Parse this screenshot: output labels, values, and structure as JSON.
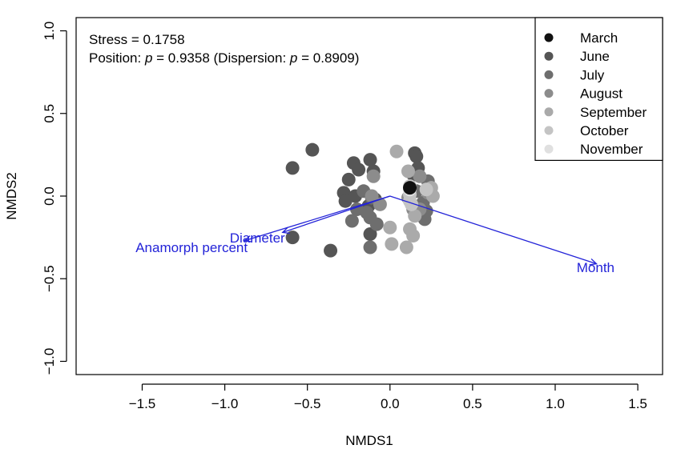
{
  "chart_data": {
    "type": "scatter",
    "xlabel": "NMDS1",
    "ylabel": "NMDS2",
    "xlim": [
      -1.9,
      1.65
    ],
    "ylim": [
      -1.08,
      1.08
    ],
    "xticks": [
      -1.5,
      -1.0,
      -0.5,
      0.0,
      0.5,
      1.0,
      1.5
    ],
    "yticks": [
      -1.0,
      -0.5,
      0.0,
      0.5,
      1.0
    ],
    "xtick_labels": [
      "−1.5",
      "−1.0",
      "−0.5",
      "0.0",
      "0.5",
      "1.0",
      "1.5"
    ],
    "ytick_labels": [
      "−1.0",
      "−0.5",
      "0.0",
      "0.5",
      "1.0"
    ],
    "annotations": {
      "stress": "Stress = 0.1758",
      "position_prefix": "Position: ",
      "position_p_symbol": "p",
      "position_p_value": " = 0.9358 (Dispersion: ",
      "dispersion_p_symbol": "p",
      "dispersion_p_value": " = 0.8909)"
    },
    "legend": {
      "placement": "top-right",
      "entries": [
        {
          "name": "March",
          "color": "#111111"
        },
        {
          "name": "June",
          "color": "#555555"
        },
        {
          "name": "July",
          "color": "#6e6e6e"
        },
        {
          "name": "August",
          "color": "#8c8c8c"
        },
        {
          "name": "September",
          "color": "#aaaaaa"
        },
        {
          "name": "October",
          "color": "#c4c4c4"
        },
        {
          "name": "November",
          "color": "#e0e0e0"
        }
      ]
    },
    "series": [
      {
        "name": "June",
        "color": "#555555",
        "points": [
          [
            -0.47,
            0.28
          ],
          [
            -0.59,
            0.17
          ],
          [
            -0.22,
            0.2
          ],
          [
            -0.12,
            0.22
          ],
          [
            -0.19,
            0.16
          ],
          [
            -0.25,
            0.1
          ],
          [
            -0.1,
            0.15
          ],
          [
            -0.28,
            0.02
          ],
          [
            -0.21,
            0.0
          ],
          [
            -0.27,
            -0.03
          ],
          [
            -0.13,
            -0.06
          ],
          [
            -0.09,
            -0.02
          ],
          [
            -0.12,
            -0.23
          ],
          [
            -0.59,
            -0.25
          ],
          [
            -0.36,
            -0.33
          ],
          [
            0.15,
            0.26
          ],
          [
            0.16,
            0.24
          ],
          [
            0.17,
            0.17
          ],
          [
            0.14,
            0.13
          ]
        ]
      },
      {
        "name": "July",
        "color": "#6e6e6e",
        "points": [
          [
            -0.16,
            0.03
          ],
          [
            -0.11,
            -0.01
          ],
          [
            -0.2,
            -0.08
          ],
          [
            -0.14,
            -0.1
          ],
          [
            -0.12,
            -0.13
          ],
          [
            -0.23,
            -0.15
          ],
          [
            -0.08,
            -0.17
          ],
          [
            -0.12,
            -0.31
          ],
          [
            0.16,
            0.03
          ],
          [
            0.2,
            -0.04
          ],
          [
            0.22,
            -0.09
          ],
          [
            0.21,
            -0.14
          ],
          [
            0.23,
            0.09
          ]
        ]
      },
      {
        "name": "August",
        "color": "#8c8c8c",
        "points": [
          [
            -0.1,
            0.12
          ],
          [
            -0.11,
            0.0
          ],
          [
            -0.06,
            -0.05
          ],
          [
            0.18,
            -0.08
          ],
          [
            0.18,
            0.12
          ],
          [
            0.23,
            0.02
          ],
          [
            0.11,
            -0.01
          ],
          [
            0.14,
            -0.08
          ]
        ]
      },
      {
        "name": "September",
        "color": "#aaaaaa",
        "points": [
          [
            0.04,
            0.27
          ],
          [
            0.11,
            0.15
          ],
          [
            0.25,
            0.05
          ],
          [
            0.26,
            0.0
          ],
          [
            0.15,
            -0.12
          ],
          [
            0.12,
            -0.2
          ],
          [
            0.14,
            -0.24
          ],
          [
            0.0,
            -0.19
          ],
          [
            0.01,
            -0.29
          ],
          [
            0.1,
            -0.31
          ]
        ]
      },
      {
        "name": "October",
        "color": "#c4c4c4",
        "points": [
          [
            0.12,
            0.06
          ],
          [
            0.12,
            0.01
          ],
          [
            0.12,
            -0.03
          ],
          [
            0.13,
            -0.05
          ],
          [
            0.22,
            0.04
          ]
        ]
      },
      {
        "name": "November",
        "color": "#e0e0e0",
        "points": [
          [
            0.12,
            0.04
          ]
        ]
      },
      {
        "name": "March",
        "color": "#111111",
        "points": [
          [
            0.12,
            0.05
          ]
        ]
      }
    ],
    "vectors": {
      "color": "#2323d8",
      "items": [
        {
          "label": "Month",
          "x": 1.25,
          "y": -0.41,
          "label_x": 1.13,
          "label_y": -0.46
        },
        {
          "label": "Diameter",
          "x": -0.65,
          "y": -0.22,
          "label_x": -0.97,
          "label_y": -0.28
        },
        {
          "label": "Anamorph  percent",
          "x": -0.88,
          "y": -0.27,
          "label_x": -1.54,
          "label_y": -0.34
        }
      ]
    }
  }
}
